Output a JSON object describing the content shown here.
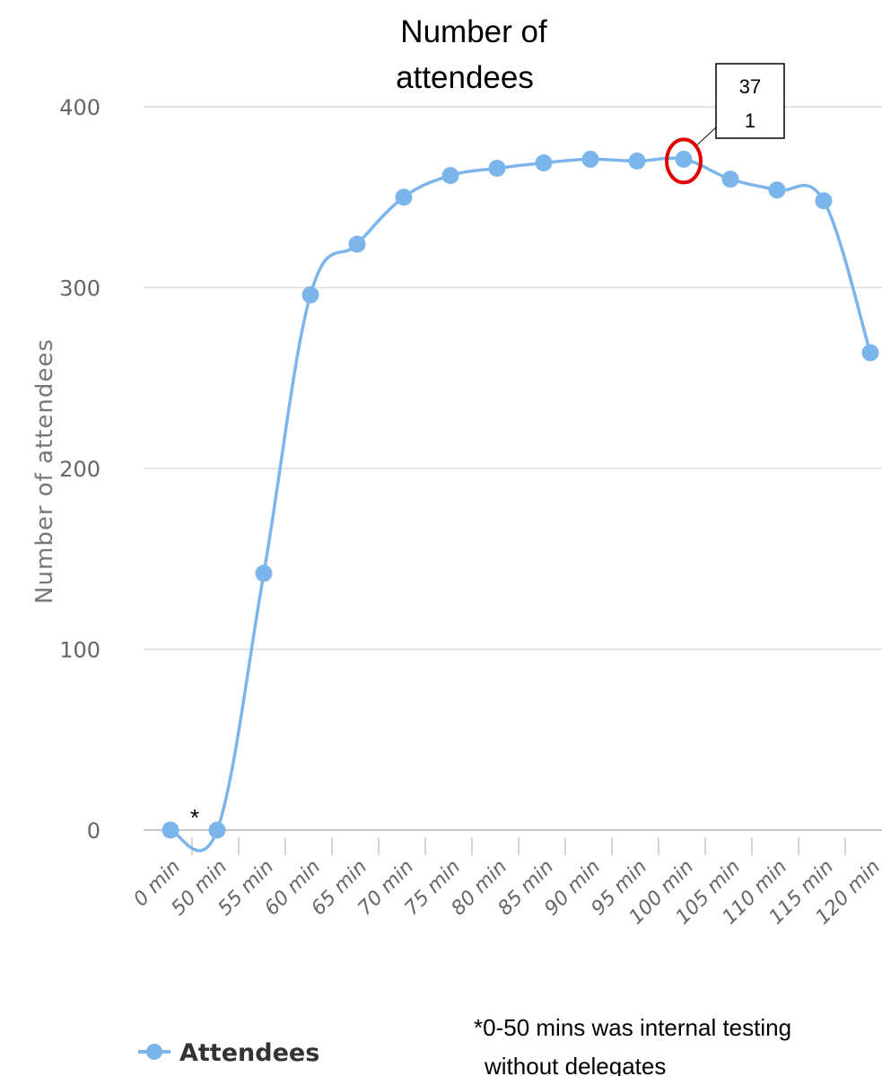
{
  "chart_data": {
    "type": "line",
    "title_lines": [
      "Number of",
      "attendees"
    ],
    "ylabel": "Number of attendees",
    "xlabel": "",
    "ylim": [
      0,
      400
    ],
    "yticks": [
      0,
      100,
      200,
      300,
      400
    ],
    "grid": true,
    "smooth": true,
    "legend_position": "bottom-left",
    "categories": [
      "0 min",
      "50 min",
      "55 min",
      "60 min",
      "65 min",
      "70 min",
      "75 min",
      "80 min",
      "85 min",
      "90 min",
      "95 min",
      "100 min",
      "105 min",
      "110 min",
      "115 min",
      "120 min"
    ],
    "series": [
      {
        "name": "Attendees",
        "color": "#7cb5ec",
        "values": [
          0,
          0,
          142,
          296,
          324,
          350,
          362,
          366,
          369,
          371,
          370,
          371,
          360,
          354,
          348,
          264
        ]
      }
    ],
    "annotations": {
      "callout": {
        "lines": [
          "37",
          "1"
        ],
        "category": "100 min",
        "value": 371,
        "highlight_color": "#e00000"
      },
      "asterisk": {
        "text": "*",
        "category": "0 min"
      },
      "footnote": {
        "star": "*",
        "lines": [
          "0-50 mins was internal testing",
          "without delegates"
        ]
      }
    }
  }
}
